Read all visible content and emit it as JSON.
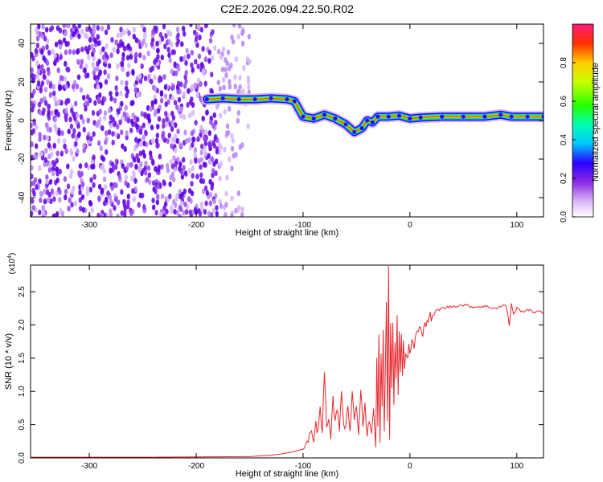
{
  "chart_data": [
    {
      "type": "heatmap",
      "title": "C2E2.2026.094.22.50.R02",
      "xlabel": "Height of straight line (km)",
      "ylabel": "Frequency (Hz)",
      "xlim": [
        -355,
        125
      ],
      "ylim": [
        -50,
        50
      ],
      "x_ticks": [
        -300,
        -200,
        -100,
        0,
        100
      ],
      "x_tick_labels": [
        "-300",
        "-200",
        "-100",
        "0",
        "100"
      ],
      "y_ticks": [
        -40,
        -20,
        0,
        20,
        40
      ],
      "y_tick_labels": [
        "-40",
        "-20",
        "0",
        "20",
        "40"
      ],
      "noise_region": {
        "x_from": -355,
        "x_to": -150,
        "density": "high until -180, sparse -180 to -150"
      },
      "ridge": {
        "x": [
          -190,
          -175,
          -160,
          -145,
          -130,
          -115,
          -108,
          -100,
          -90,
          -80,
          -70,
          -60,
          -52,
          -45,
          -40,
          -35,
          -30,
          -20,
          -10,
          0,
          10,
          30,
          50,
          70,
          85,
          95,
          110,
          125
        ],
        "y": [
          11,
          11.5,
          11,
          11,
          11.5,
          11,
          10,
          2,
          1,
          3,
          1,
          -2,
          -6,
          -4,
          0,
          -1,
          2,
          2,
          2.5,
          1,
          1.5,
          2,
          2,
          2,
          3,
          2,
          2,
          2
        ]
      },
      "colorbar": {
        "label": "Normalized spectral amplitude",
        "range": [
          0,
          1
        ],
        "ticks": [
          0.0,
          0.2,
          0.4,
          0.6,
          0.8
        ],
        "tick_labels": [
          "0.0",
          "0.2",
          "0.4",
          "0.6",
          "0.8"
        ]
      }
    },
    {
      "type": "line",
      "xlabel": "Height of straight line (km)",
      "ylabel": "SNR (10 * v/v)",
      "multiplier_label": "(x10",
      "multiplier_exp": "4",
      "multiplier_close": ")",
      "xlim": [
        -355,
        125
      ],
      "ylim": [
        0,
        2.9
      ],
      "x_ticks": [
        -300,
        -200,
        -100,
        0,
        100
      ],
      "x_tick_labels": [
        "-300",
        "-200",
        "-100",
        "0",
        "100"
      ],
      "y_ticks": [
        0,
        0.5,
        1.0,
        1.5,
        2.0,
        2.5
      ],
      "y_tick_labels": [
        "0.0",
        "0.5",
        "1.0",
        "1.5",
        "2.0",
        "2.5"
      ],
      "series": [
        {
          "name": "SNR",
          "color": "#e8262c",
          "x": [
            -355,
            -250,
            -150,
            -130,
            -120,
            -110,
            -100,
            -95,
            -92,
            -90,
            -88,
            -86,
            -84,
            -82,
            -80,
            -78,
            -76,
            -74,
            -72,
            -70,
            -68,
            -66,
            -64,
            -62,
            -60,
            -58,
            -56,
            -54,
            -52,
            -50,
            -48,
            -46,
            -44,
            -42,
            -40,
            -38,
            -36,
            -34,
            -32,
            -31,
            -30,
            -29,
            -28,
            -27,
            -26,
            -25,
            -24,
            -23,
            -22,
            -21,
            -20,
            -19,
            -18,
            -17,
            -16,
            -15,
            -14,
            -13,
            -12,
            -11,
            -10,
            -9,
            -8,
            -7,
            -6,
            -5,
            -4,
            -3,
            -2,
            -1,
            0,
            2,
            4,
            6,
            8,
            10,
            12,
            14,
            16,
            18,
            20,
            25,
            30,
            40,
            50,
            60,
            70,
            80,
            90,
            93,
            95,
            97,
            100,
            105,
            110,
            115,
            120,
            125
          ],
          "y": [
            0.01,
            0.01,
            0.02,
            0.04,
            0.06,
            0.09,
            0.13,
            0.25,
            0.4,
            0.3,
            0.55,
            0.35,
            0.7,
            0.4,
            1.28,
            0.5,
            0.6,
            0.35,
            0.95,
            0.5,
            0.8,
            0.35,
            1.0,
            0.55,
            0.45,
            0.85,
            0.4,
            1.0,
            0.6,
            0.8,
            0.35,
            1.0,
            0.5,
            0.8,
            0.3,
            0.6,
            0.35,
            0.8,
            0.2,
            1.5,
            0.5,
            1.9,
            0.3,
            1.6,
            0.8,
            2.0,
            0.4,
            1.3,
            2.3,
            0.5,
            2.9,
            0.3,
            2.1,
            1.1,
            2.0,
            0.8,
            1.8,
            1.2,
            2.1,
            1.0,
            1.9,
            1.35,
            1.85,
            1.25,
            1.7,
            1.3,
            1.6,
            1.55,
            1.45,
            1.7,
            1.6,
            1.75,
            1.65,
            1.9,
            1.85,
            2.0,
            1.9,
            2.05,
            2.0,
            2.15,
            2.1,
            2.22,
            2.25,
            2.28,
            2.3,
            2.27,
            2.28,
            2.25,
            2.3,
            2.0,
            2.33,
            2.15,
            2.25,
            2.2,
            2.23,
            2.2,
            2.2,
            2.18
          ]
        }
      ]
    }
  ]
}
